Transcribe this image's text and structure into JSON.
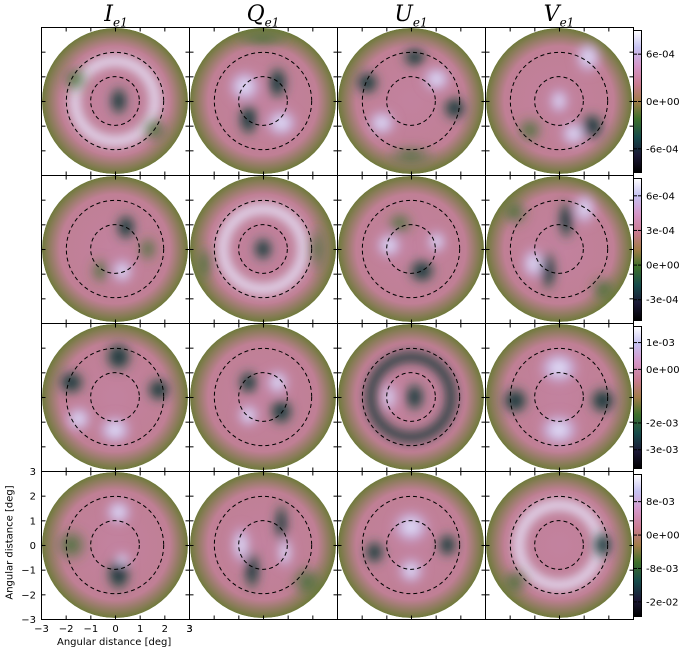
{
  "figure": {
    "columns": [
      {
        "symbol": "I",
        "subscript": "e1"
      },
      {
        "symbol": "Q",
        "subscript": "e1"
      },
      {
        "symbol": "U",
        "subscript": "e1"
      },
      {
        "symbol": "V",
        "subscript": "e1"
      }
    ],
    "xlabel": "Angular distance [deg]",
    "ylabel": "Angular distance [deg]",
    "x_ticks": [
      "−3",
      "−2",
      "−1",
      "0",
      "1",
      "2",
      "3"
    ],
    "y_ticks": [
      "3",
      "2",
      "1",
      "0",
      "−1",
      "−2",
      "−3"
    ]
  },
  "chart_data": {
    "type": "heatmap",
    "description_grid": "4 rows x 4 columns of circular beam maps",
    "xlim": [
      -3,
      3
    ],
    "ylim": [
      -3,
      3
    ],
    "dashed_circle_radii_deg": [
      1.0,
      2.0
    ],
    "colormap": "cubehelix",
    "colorbars": [
      {
        "row": 1,
        "ticks": [
          "6e-04",
          "0e+00",
          "-6e-04"
        ],
        "tick_values": [
          0.0006,
          0.0,
          -0.0006
        ],
        "range": [
          -0.0009,
          0.0009
        ]
      },
      {
        "row": 2,
        "ticks": [
          "6e-04",
          "3e-04",
          "0e+00",
          "-3e-04"
        ],
        "tick_values": [
          0.0006,
          0.0003,
          0.0,
          -0.0003
        ],
        "range": [
          -0.00048,
          0.00075
        ]
      },
      {
        "row": 3,
        "ticks": [
          "1e-03",
          "0e+00",
          "-2e-03",
          "-3e-03"
        ],
        "tick_values": [
          0.001,
          0.0,
          -0.002,
          -0.003
        ],
        "range": [
          -0.0037,
          0.0016
        ]
      },
      {
        "row": 4,
        "ticks": [
          "8e-03",
          "0e+00",
          "-8e-03",
          "-2e-02"
        ],
        "tick_values": [
          0.008,
          0.0,
          -0.008,
          -0.016
        ],
        "range": [
          -0.0195,
          0.0145
        ]
      }
    ]
  }
}
